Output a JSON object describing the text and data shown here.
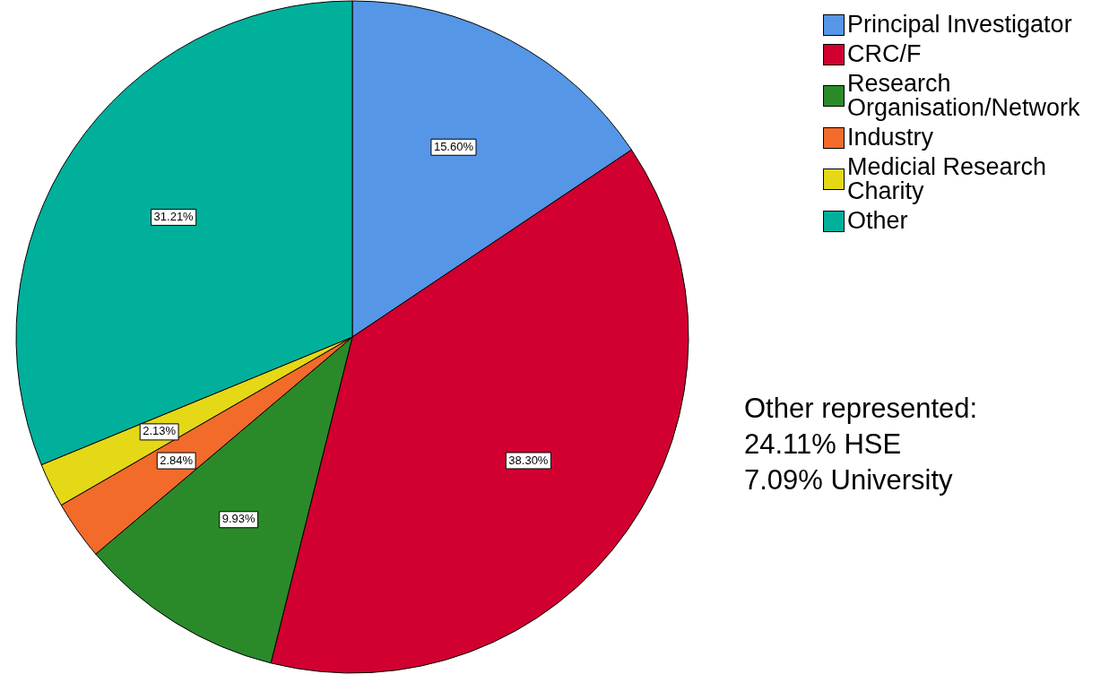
{
  "chart_data": {
    "type": "pie",
    "categories": [
      "Principal Investigator",
      "CRC/F",
      "Research Organisation/Network",
      "Industry",
      "Medicial Research Charity",
      "Other"
    ],
    "values": [
      15.6,
      38.3,
      9.93,
      2.84,
      2.13,
      31.21
    ],
    "value_labels": [
      "15.60%",
      "38.30%",
      "9.93%",
      "2.84%",
      "2.13%",
      "31.21%"
    ],
    "colors": [
      "#5596e6",
      "#d10030",
      "#2a8a2a",
      "#f26b2a",
      "#e5d817",
      "#00b09b"
    ],
    "legend": "top right",
    "annotations": [
      "Other represented:\n24.11% HSE\n7.09% University"
    ]
  }
}
